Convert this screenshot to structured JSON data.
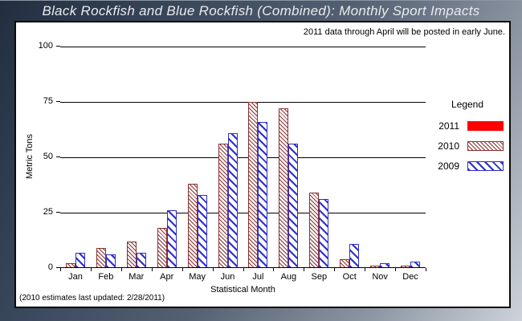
{
  "window": {
    "title": "Black Rockfish and Blue Rockfish (Combined): Monthly Sport Impacts"
  },
  "panel": {
    "note": "2011 data through April will be posted in early June.",
    "footer": "(2010 estimates last updated: 2/28/2011)"
  },
  "chart_data": {
    "type": "bar",
    "title": "Black Rockfish and Blue Rockfish (Combined): Monthly Sport Impacts",
    "xlabel": "Statistical Month",
    "ylabel": "Metric Tons",
    "ylim": [
      0,
      100
    ],
    "yticks": [
      0,
      25,
      50,
      75,
      100
    ],
    "grid": "horizontal",
    "legend_position": "right",
    "legend_title": "Legend",
    "categories": [
      "Jan",
      "Feb",
      "Mar",
      "Apr",
      "May",
      "Jun",
      "Jul",
      "Aug",
      "Sep",
      "Oct",
      "Nov",
      "Dec"
    ],
    "series": [
      {
        "name": "2011",
        "color": "#ff0000",
        "style": "solid",
        "values": [
          0,
          0,
          0,
          0,
          0,
          0,
          0,
          0,
          0,
          0,
          0,
          0
        ]
      },
      {
        "name": "2010",
        "color": "#8b3030",
        "style": "hatch-fine",
        "values": [
          2,
          9,
          12,
          18,
          38,
          56,
          75,
          72,
          34,
          4,
          1,
          1
        ]
      },
      {
        "name": "2009",
        "color": "#2e2ec9",
        "style": "hatch-wide",
        "values": [
          7,
          6,
          7,
          26,
          33,
          61,
          66,
          56,
          31,
          11,
          2,
          3
        ]
      }
    ]
  }
}
